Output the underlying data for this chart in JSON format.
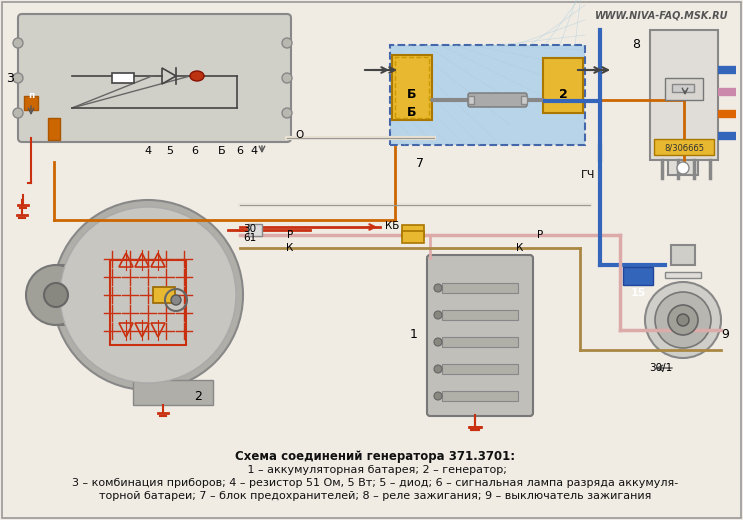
{
  "watermark": "WWW.NIVA-FAQ.MSK.RU",
  "bg_color": "#f0ece4",
  "border_color": "#999999",
  "wire_red": "#c83010",
  "wire_blue": "#3366bb",
  "wire_blue2": "#5588cc",
  "wire_orange": "#cc6600",
  "wire_pink": "#ddaaaa",
  "wire_brown": "#aa8844",
  "component_fill": "#e8b830",
  "component_gray": "#aaaaaa",
  "component_lightblue": "#b8d4e8",
  "relay_label_color": "#cc7700",
  "caption_bold": "Схема соединений генератора 371.3701:",
  "caption1": " 1 – аккумуляторная батарея; 2 – генератор;",
  "caption2": "3 – комбинация приборов; 4 – резистор 51 Ом, 5 Вт; 5 – диод; 6 – сигнальная лампа разряда аккумуля-",
  "caption3": "торной батареи; 7 – блок предохранителей; 8 – реле зажигания; 9 – выключатель зажигания"
}
